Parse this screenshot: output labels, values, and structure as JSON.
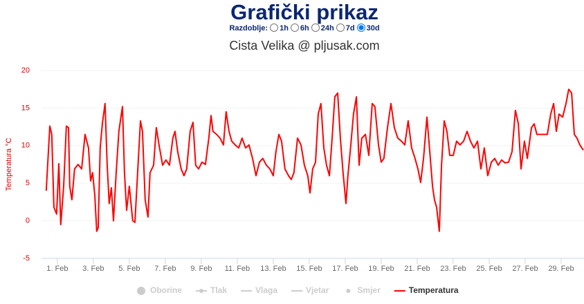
{
  "header": {
    "title": "Grafički prikaz",
    "period_label": "Razdoblje:",
    "periods": [
      "1h",
      "6h",
      "24h",
      "7d",
      "30d"
    ],
    "selected_period": "30d"
  },
  "chart_data": {
    "type": "line",
    "title": "Cista Velika @ pljusak.com",
    "y_label": "Temperatura °C",
    "x": [
      0.38,
      0.58,
      0.69,
      0.81,
      0.96,
      1.08,
      1.19,
      1.35,
      1.5,
      1.62,
      1.69,
      1.81,
      1.96,
      2.15,
      2.35,
      2.54,
      2.73,
      2.85,
      2.96,
      3.08,
      3.19,
      3.27,
      3.38,
      3.5,
      3.65,
      3.77,
      3.88,
      4.0,
      4.12,
      4.27,
      4.42,
      4.62,
      4.73,
      4.85,
      5.0,
      5.19,
      5.31,
      5.46,
      5.62,
      5.73,
      5.88,
      6.04,
      6.15,
      6.35,
      6.5,
      6.65,
      6.85,
      7.04,
      7.23,
      7.42,
      7.54,
      7.69,
      7.88,
      8.04,
      8.19,
      8.38,
      8.54,
      8.69,
      8.85,
      9.04,
      9.23,
      9.42,
      9.54,
      9.65,
      9.85,
      10.04,
      10.23,
      10.38,
      10.54,
      10.69,
      10.88,
      11.08,
      11.27,
      11.46,
      11.65,
      11.85,
      12.04,
      12.23,
      12.42,
      12.62,
      12.81,
      13.0,
      13.15,
      13.31,
      13.46,
      13.65,
      13.85,
      14.0,
      14.15,
      14.35,
      14.54,
      14.73,
      14.92,
      15.04,
      15.19,
      15.35,
      15.5,
      15.65,
      15.81,
      15.96,
      16.12,
      16.27,
      16.42,
      16.58,
      16.73,
      16.88,
      17.04,
      17.15,
      17.31,
      17.46,
      17.62,
      17.77,
      17.92,
      18.12,
      18.31,
      18.5,
      18.65,
      18.85,
      19.0,
      19.15,
      19.35,
      19.54,
      19.73,
      19.92,
      20.12,
      20.31,
      20.5,
      20.69,
      20.88,
      21.04,
      21.19,
      21.35,
      21.54,
      21.65,
      21.85,
      21.96,
      22.08,
      22.23,
      22.35,
      22.5,
      22.65,
      22.81,
      23.0,
      23.19,
      23.38,
      23.58,
      23.77,
      23.96,
      24.15,
      24.35,
      24.54,
      24.73,
      24.92,
      25.12,
      25.31,
      25.5,
      25.69,
      25.88,
      26.08,
      26.27,
      26.46,
      26.62,
      26.77,
      26.96,
      27.12,
      27.35,
      27.5,
      27.65,
      27.85,
      28.04,
      28.23,
      28.42,
      28.58,
      28.73,
      28.88,
      29.08,
      29.27,
      29.42,
      29.58,
      29.73,
      29.88,
      30.04,
      30.23
    ],
    "series": [
      {
        "name": "Temperatura",
        "color": "#ff0000",
        "values": [
          4,
          12.6,
          11.5,
          1.8,
          0.9,
          7.6,
          -0.5,
          4.6,
          12.6,
          12.4,
          4.6,
          2.8,
          6.9,
          7.5,
          6.9,
          11.5,
          9.7,
          5.3,
          6.4,
          3.4,
          -1.4,
          -0.9,
          9.7,
          12.9,
          15.6,
          7.4,
          2.3,
          4.4,
          0,
          6.4,
          11.9,
          15.2,
          6.4,
          1.4,
          4.6,
          0,
          -0.2,
          6.4,
          13.3,
          11.9,
          2.8,
          0.5,
          6.4,
          7.4,
          12.4,
          10.1,
          7.4,
          8.1,
          7.4,
          11,
          11.9,
          9.2,
          6.9,
          6,
          6.9,
          11.9,
          13.1,
          7.4,
          6.9,
          7.8,
          7.5,
          11,
          14,
          11.9,
          11.5,
          11,
          10.1,
          14.5,
          11.9,
          10.6,
          10.1,
          9.7,
          11,
          9.7,
          10.1,
          8.3,
          6,
          7.8,
          8.3,
          7.4,
          6.9,
          6,
          9.2,
          11.5,
          10.6,
          6.9,
          6,
          5.5,
          6.4,
          11,
          10.1,
          7.4,
          6,
          3.7,
          6.9,
          7.8,
          14.2,
          15.6,
          9.7,
          7.4,
          6,
          11,
          16.5,
          17,
          11,
          6.4,
          2.3,
          6,
          10.1,
          14.2,
          16.5,
          7.4,
          11,
          11.5,
          8.7,
          15.6,
          15.2,
          10.1,
          7.8,
          8.3,
          12.4,
          15.6,
          12.4,
          11,
          10.6,
          10.1,
          13.3,
          9.7,
          8.3,
          6.9,
          5.1,
          8.3,
          13.8,
          10.6,
          4.6,
          2.8,
          1.8,
          -1.4,
          7.4,
          13.3,
          11.9,
          8.7,
          8.7,
          10.6,
          10.1,
          10.6,
          11.9,
          10.6,
          9.7,
          10.6,
          6.9,
          9.7,
          6,
          7.8,
          8.3,
          7.4,
          8.1,
          7.7,
          7.8,
          9.2,
          14.7,
          12.9,
          6.9,
          10.6,
          8.3,
          12.4,
          12.9,
          11.5,
          11.5,
          11.5,
          11.5,
          14.2,
          15.6,
          11.9,
          14.2,
          13.8,
          15.6,
          17.5,
          17,
          11.5,
          11,
          10.1,
          9.4
        ]
      }
    ],
    "hidden_series": [
      {
        "name": "Oborine",
        "symbol": "circle"
      },
      {
        "name": "Tlak",
        "symbol": "line-dot"
      },
      {
        "name": "Vlaga",
        "symbol": "line"
      },
      {
        "name": "Vjetar",
        "symbol": "line"
      },
      {
        "name": "Smjer",
        "symbol": "dot"
      }
    ],
    "xlim": [
      0.12,
      30.27
    ],
    "xticks": [
      {
        "value": 1,
        "label": "1. Feb"
      },
      {
        "value": 3,
        "label": "3. Feb"
      },
      {
        "value": 5,
        "label": "5. Feb"
      },
      {
        "value": 7,
        "label": "7. Feb"
      },
      {
        "value": 9,
        "label": "9. Feb"
      },
      {
        "value": 11,
        "label": "11. Feb"
      },
      {
        "value": 13,
        "label": "13. Feb"
      },
      {
        "value": 15,
        "label": "15. Feb"
      },
      {
        "value": 17,
        "label": "17. Feb"
      },
      {
        "value": 19,
        "label": "19. Feb"
      },
      {
        "value": 21,
        "label": "21. Feb"
      },
      {
        "value": 23,
        "label": "23. Feb"
      },
      {
        "value": 25,
        "label": "25. Feb"
      },
      {
        "value": 27,
        "label": "27. Feb"
      },
      {
        "value": 29,
        "label": "29. Feb"
      }
    ],
    "ylim": [
      -5,
      20
    ],
    "yticks": [
      -5,
      0,
      5,
      10,
      15,
      20
    ],
    "grid": true
  }
}
